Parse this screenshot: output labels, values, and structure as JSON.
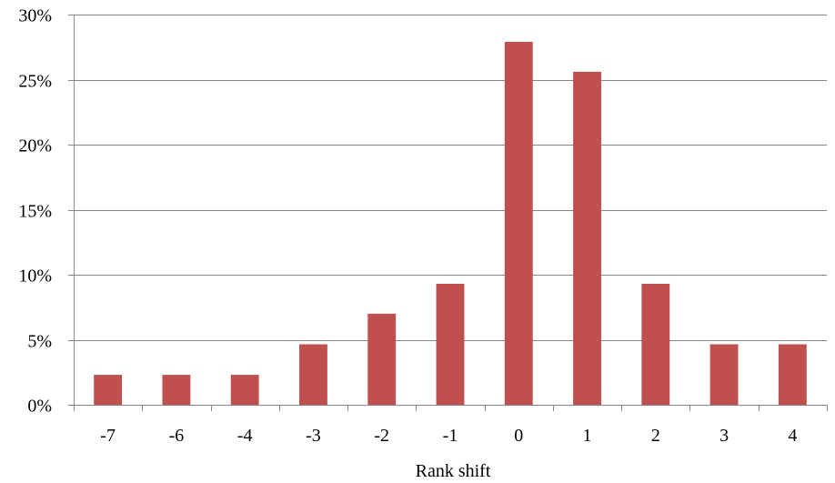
{
  "chart_data": {
    "type": "bar",
    "title": "",
    "xlabel": "Rank shift",
    "ylabel": "",
    "categories": [
      "-7",
      "-6",
      "-4",
      "-3",
      "-2",
      "-1",
      "0",
      "1",
      "2",
      "3",
      "4"
    ],
    "values": [
      2.3,
      2.3,
      2.3,
      4.65,
      7.0,
      9.3,
      27.9,
      25.6,
      9.3,
      4.65,
      4.65
    ],
    "ylim": [
      0,
      30
    ],
    "yticks": [
      0,
      5,
      10,
      15,
      20,
      25,
      30
    ],
    "ytick_labels": [
      "0%",
      "5%",
      "10%",
      "15%",
      "20%",
      "25%",
      "30%"
    ],
    "grid": "horizontal",
    "legend": "none",
    "bar_color": "#C0504D",
    "grid_color": "#868686"
  }
}
